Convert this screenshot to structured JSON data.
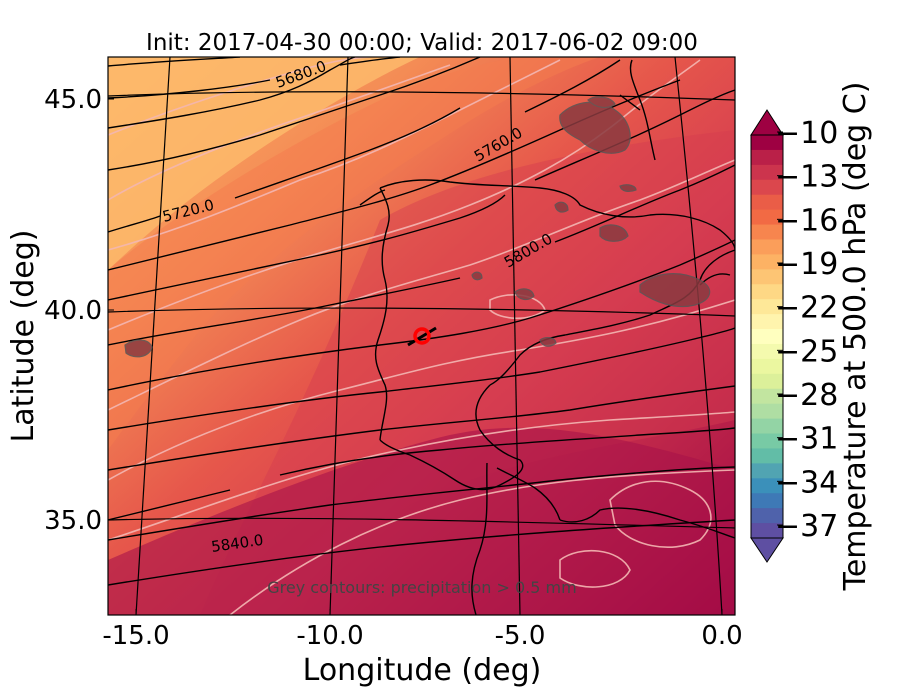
{
  "title": "Init: 2017-04-30 00:00; Valid: 2017-06-02 09:00",
  "x_axis": {
    "label": "Longitude (deg)",
    "ticks": [
      "-15.0",
      "-10.0",
      "-5.0",
      "0.0"
    ],
    "range": [
      -16,
      0.3
    ]
  },
  "y_axis": {
    "label": "Latitude (deg)",
    "ticks": [
      "45.0",
      "40.0",
      "35.0"
    ],
    "range": [
      32.7,
      46.0
    ]
  },
  "colorbar": {
    "label": "Temperature at 500.0 hPa (deg C)",
    "ticks": [
      "−10",
      "−13",
      "−16",
      "−19",
      "−22",
      "−25",
      "−28",
      "−31",
      "−34",
      "−37"
    ],
    "colormap": "Spectral",
    "extend": "both"
  },
  "height_contour_labels": [
    "5680.0",
    "5720.0",
    "5760.0",
    "5800.0",
    "5840.0"
  ],
  "annotation": "Grey contours: precipitation > 0.5 mm",
  "marker": {
    "lon": -7.7,
    "lat": 39.3,
    "color": "#ff0000"
  },
  "colors": {
    "warm": "#f08a55",
    "mid": "#d93d50",
    "cold_bg": "#b01a48",
    "coast": "#000000",
    "isotherm": "#f4b7b3"
  }
}
